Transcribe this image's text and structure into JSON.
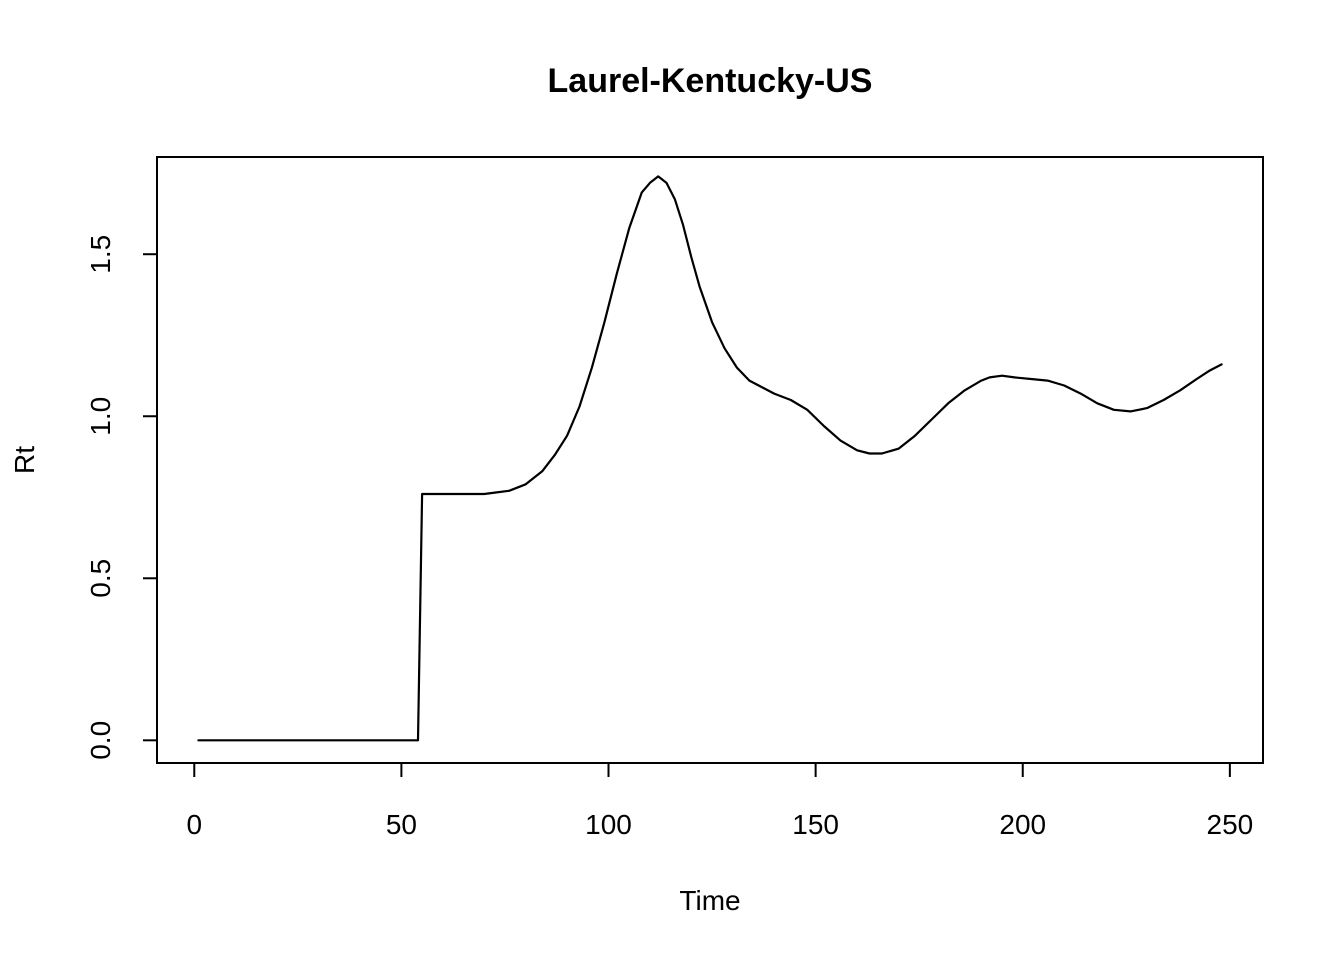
{
  "chart_data": {
    "type": "line",
    "title": "Laurel-Kentucky-US",
    "xlabel": "Time",
    "ylabel": "Rt",
    "xlim": [
      -9,
      258
    ],
    "ylim": [
      -0.07,
      1.8
    ],
    "xticks": [
      0,
      50,
      100,
      150,
      200,
      250
    ],
    "xtick_labels": [
      "0",
      "50",
      "100",
      "150",
      "200",
      "250"
    ],
    "yticks": [
      0.0,
      0.5,
      1.0,
      1.5
    ],
    "ytick_labels": [
      "0.0",
      "0.5",
      "1.0",
      "1.5"
    ],
    "grid": false,
    "legend": "none",
    "line_color": "#000000",
    "series": [
      {
        "x": [
          1,
          10,
          20,
          30,
          40,
          50,
          54,
          55,
          56,
          60,
          65,
          70,
          73,
          76,
          80,
          84,
          87,
          90,
          93,
          96,
          99,
          102,
          105,
          108,
          110,
          112,
          114,
          116,
          118,
          120,
          122,
          125,
          128,
          131,
          134,
          137,
          140,
          144,
          148,
          152,
          156,
          160,
          163,
          166,
          170,
          174,
          178,
          182,
          186,
          190,
          192,
          195,
          198,
          202,
          206,
          210,
          214,
          218,
          222,
          226,
          230,
          234,
          238,
          242,
          245,
          248
        ],
        "y": [
          0,
          0,
          0,
          0,
          0,
          0,
          0,
          0.76,
          0.76,
          0.76,
          0.76,
          0.76,
          0.765,
          0.77,
          0.79,
          0.83,
          0.88,
          0.94,
          1.03,
          1.15,
          1.29,
          1.44,
          1.58,
          1.69,
          1.72,
          1.74,
          1.72,
          1.67,
          1.59,
          1.49,
          1.4,
          1.29,
          1.21,
          1.15,
          1.11,
          1.09,
          1.07,
          1.05,
          1.02,
          0.97,
          0.925,
          0.895,
          0.885,
          0.885,
          0.9,
          0.94,
          0.99,
          1.04,
          1.08,
          1.11,
          1.12,
          1.125,
          1.12,
          1.115,
          1.11,
          1.095,
          1.07,
          1.04,
          1.02,
          1.015,
          1.025,
          1.05,
          1.08,
          1.115,
          1.14,
          1.16
        ]
      }
    ]
  }
}
